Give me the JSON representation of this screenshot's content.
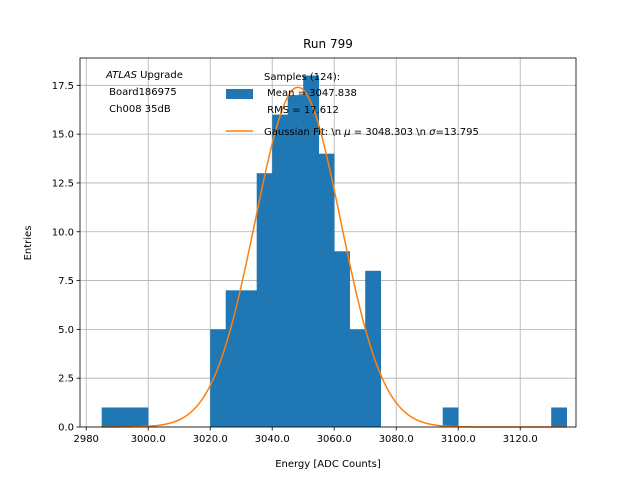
{
  "chart_data": {
    "type": "bar",
    "title": "Run 799",
    "xlabel": "Energy [ADC Counts]",
    "ylabel": "Entries",
    "xlim": [
      2978,
      3138
    ],
    "ylim": [
      0,
      18.9
    ],
    "grid": true,
    "x_ticks": [
      2980,
      3000,
      3020,
      3040,
      3060,
      3080,
      3100,
      3120
    ],
    "x_tick_labels": [
      "2980",
      "3000.0",
      "3020.0",
      "3040.0",
      "3060.0",
      "3080.0",
      "3100.0",
      "3120.0"
    ],
    "y_ticks": [
      0,
      2.5,
      5,
      7.5,
      10,
      12.5,
      15,
      17.5
    ],
    "y_tick_labels": [
      "0.0",
      "2.5",
      "5.0",
      "7.5",
      "10.0",
      "12.5",
      "15.0",
      "17.5"
    ],
    "bin_width": 5,
    "histogram": {
      "name": "Samples (124)",
      "color": "#1f77b4",
      "bin_starts": [
        2985,
        2990,
        2995,
        3020,
        3025,
        3030,
        3035,
        3040,
        3045,
        3050,
        3055,
        3060,
        3065,
        3070,
        3095,
        3130
      ],
      "counts": [
        1,
        1,
        1,
        5,
        7,
        7,
        13,
        16,
        17,
        18,
        14,
        9,
        5,
        8,
        1,
        1
      ]
    },
    "fit": {
      "name": "Gaussian Fit",
      "color": "#ff7f0e",
      "mu": 3048.303,
      "sigma": 13.795,
      "amplitude": 17.4,
      "x_range": [
        2985,
        3135
      ]
    },
    "annotation": {
      "italic": "ATLAS",
      "rest": " Upgrade",
      "line2": " Board186975",
      "line3": " Ch008 35dB"
    },
    "legend": {
      "position": "top-center",
      "samples_line1": "Samples (124):",
      "samples_line2": " Mean = 3047.838",
      "samples_line3": " RMS = 17.612",
      "fit_prefix": "Gaussian Fit: \\n ",
      "fit_mu_symbol": "μ",
      "fit_mid": " = 3048.303 \\n ",
      "fit_sigma_symbol": "σ",
      "fit_suffix": "=13.795"
    }
  }
}
